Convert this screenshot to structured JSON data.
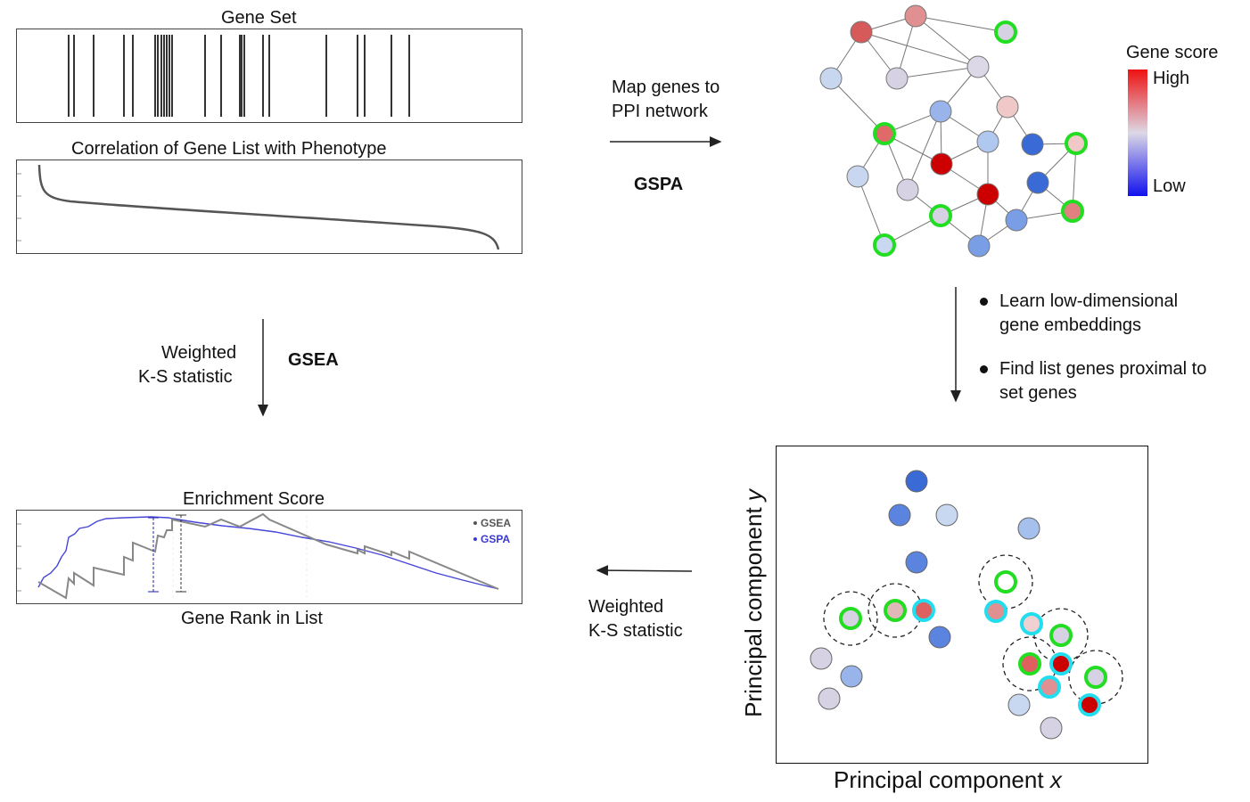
{
  "gsea_panel": {
    "gene_set_title": "Gene Set",
    "correlation_title": "Correlation of Gene List with Phenotype",
    "enrichment_title": "Enrichment Score",
    "rank_axis_label": "Gene Rank in List",
    "legend": [
      {
        "label": "GSEA",
        "color": "#555555"
      },
      {
        "label": "GSPA",
        "color": "#3a3ad0"
      }
    ]
  },
  "arrow_labels": {
    "map_genes": [
      "Map genes to",
      "PPI network"
    ],
    "gspa": "GSPA",
    "weighted_left": [
      "Weighted",
      "K-S statistic"
    ],
    "gsea": "GSEA",
    "weighted_bottom": [
      "Weighted",
      "K-S statistic"
    ]
  },
  "network": {
    "legend_title": "Gene score",
    "legend_high": "High",
    "legend_low": "Low",
    "colors": {
      "high": "#ee1111",
      "mid": "#dcd8e6",
      "low": "#1111ee",
      "set_gene_ring": "#22dd22"
    }
  },
  "steps": [
    "Learn low-dimensional gene embeddings",
    "Find list genes proximal to set genes"
  ],
  "steps_lines": [
    [
      "Learn low-dimensional",
      "gene embeddings"
    ],
    [
      "Find list genes proximal to",
      "set genes"
    ]
  ],
  "embedding_plot": {
    "xlabel_prefix": "Principal component ",
    "xlabel_var": "x",
    "ylabel_prefix": "Principal component ",
    "ylabel_var": "y",
    "neighbor_ring_color": "#22ddee"
  }
}
